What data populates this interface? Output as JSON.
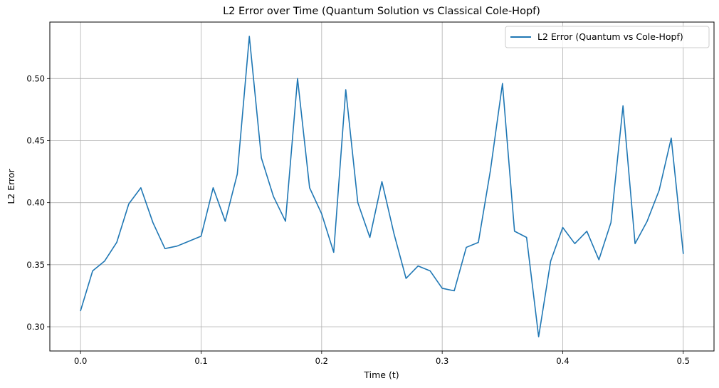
{
  "chart_data": {
    "type": "line",
    "title": "L2 Error over Time (Quantum Solution vs Classical Cole-Hopf)",
    "xlabel": "Time (t)",
    "ylabel": "L2 Error",
    "xlim": [
      -0.0255,
      0.5255
    ],
    "ylim": [
      0.2805,
      0.5455
    ],
    "x_ticks": [
      0.0,
      0.1,
      0.2,
      0.3,
      0.4,
      0.5
    ],
    "x_tick_labels": [
      "0.0",
      "0.1",
      "0.2",
      "0.3",
      "0.4",
      "0.5"
    ],
    "y_ticks": [
      0.3,
      0.35,
      0.4,
      0.45,
      0.5
    ],
    "y_tick_labels": [
      "0.30",
      "0.35",
      "0.40",
      "0.45",
      "0.50"
    ],
    "grid": true,
    "legend_position": "top-right",
    "series": [
      {
        "name": "L2 Error (Quantum vs Cole-Hopf)",
        "color": "#1f77b4",
        "x": [
          0.0,
          0.01,
          0.02,
          0.03,
          0.04,
          0.05,
          0.06,
          0.07,
          0.08,
          0.09,
          0.1,
          0.11,
          0.12,
          0.13,
          0.14,
          0.15,
          0.16,
          0.17,
          0.18,
          0.19,
          0.2,
          0.21,
          0.22,
          0.23,
          0.24,
          0.25,
          0.26,
          0.27,
          0.28,
          0.29,
          0.3,
          0.31,
          0.32,
          0.33,
          0.34,
          0.35,
          0.36,
          0.37,
          0.38,
          0.39,
          0.4,
          0.41,
          0.42,
          0.43,
          0.44,
          0.45,
          0.46,
          0.47,
          0.48,
          0.49,
          0.5
        ],
        "values": [
          0.313,
          0.345,
          0.353,
          0.368,
          0.399,
          0.412,
          0.384,
          0.363,
          0.365,
          0.369,
          0.373,
          0.412,
          0.385,
          0.423,
          0.534,
          0.436,
          0.405,
          0.385,
          0.5,
          0.412,
          0.391,
          0.36,
          0.491,
          0.4,
          0.372,
          0.417,
          0.375,
          0.339,
          0.349,
          0.345,
          0.331,
          0.329,
          0.364,
          0.368,
          0.426,
          0.496,
          0.377,
          0.372,
          0.292,
          0.353,
          0.38,
          0.367,
          0.377,
          0.354,
          0.384,
          0.478,
          0.367,
          0.385,
          0.41,
          0.452,
          0.359
        ]
      }
    ]
  }
}
